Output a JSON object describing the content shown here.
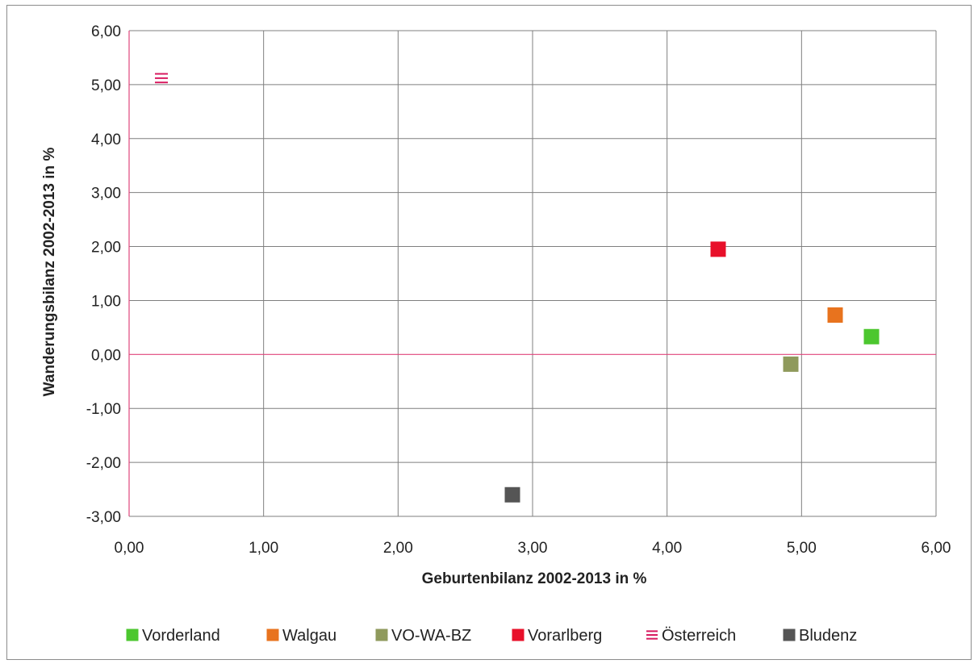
{
  "chart_data": {
    "type": "scatter",
    "xlabel": "Geburtenbilanz 2002-2013 in %",
    "ylabel": "Wanderungsbilanz 2002-2013 in %",
    "xlim": [
      0,
      6
    ],
    "ylim": [
      -3,
      6
    ],
    "x_ticks": [
      0,
      1,
      2,
      3,
      4,
      5,
      6
    ],
    "y_ticks": [
      -3,
      -2,
      -1,
      0,
      1,
      2,
      3,
      4,
      5,
      6
    ],
    "x_tick_labels": [
      "0,00",
      "1,00",
      "2,00",
      "3,00",
      "4,00",
      "5,00",
      "6,00"
    ],
    "y_tick_labels": [
      "-3,00",
      "-2,00",
      "-1,00",
      "0,00",
      "1,00",
      "2,00",
      "3,00",
      "4,00",
      "5,00",
      "6,00"
    ],
    "grid": true,
    "legend_position": "bottom",
    "series": [
      {
        "name": "Vorderland",
        "x": [
          5.52
        ],
        "y": [
          0.33
        ],
        "color": "#4cc72f",
        "marker": "square"
      },
      {
        "name": "Walgau",
        "x": [
          5.25
        ],
        "y": [
          0.73
        ],
        "color": "#e8731e",
        "marker": "square"
      },
      {
        "name": "VO-WA-BZ",
        "x": [
          4.92
        ],
        "y": [
          -0.18
        ],
        "color": "#8f9a5c",
        "marker": "square"
      },
      {
        "name": "Vorarlberg",
        "x": [
          4.38
        ],
        "y": [
          1.95
        ],
        "color": "#e8102a",
        "marker": "square"
      },
      {
        "name": "Österreich",
        "x": [
          0.24
        ],
        "y": [
          5.12
        ],
        "color": "#d81b60",
        "marker": "lines"
      },
      {
        "name": "Bludenz",
        "x": [
          2.85
        ],
        "y": [
          -2.6
        ],
        "color": "#555555",
        "marker": "square"
      }
    ]
  }
}
